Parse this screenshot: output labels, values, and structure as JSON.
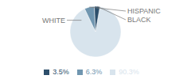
{
  "chart_data": {
    "type": "pie",
    "categories": [
      "WHITE",
      "HISPANIC",
      "BLACK"
    ],
    "values": [
      90.3,
      6.3,
      3.5
    ],
    "value_labels": [
      "90.3%",
      "6.3%",
      "3.5%"
    ],
    "colors": [
      "#d8e4ed",
      "#7096b0",
      "#2d4f6b"
    ],
    "legend": "bottom"
  }
}
